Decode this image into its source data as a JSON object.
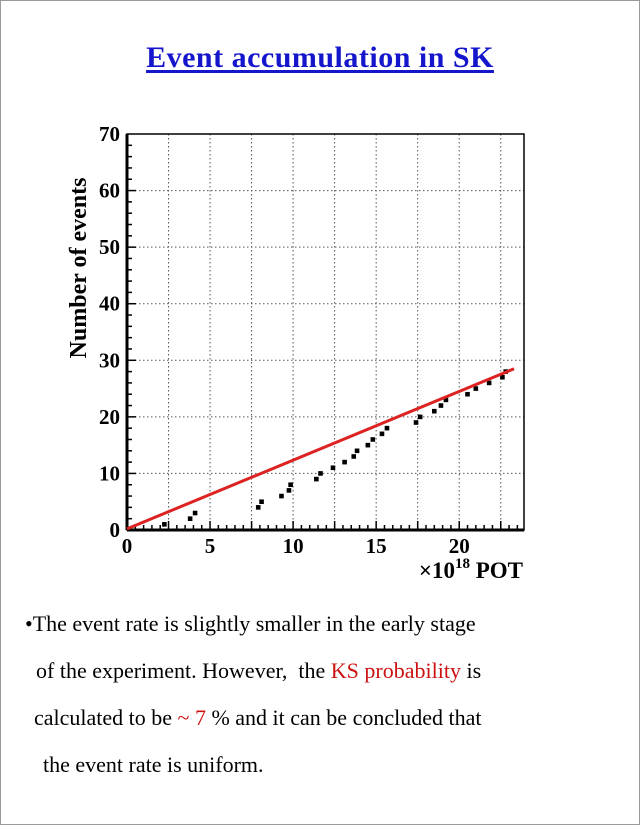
{
  "page": {
    "background": "#ffffff",
    "border_color": "#9a9a9a"
  },
  "title": {
    "text": "Event accumulation in SK",
    "color": "#1515cc"
  },
  "chart_data": {
    "type": "scatter",
    "title": "Event accumulation in SK",
    "xlabel": "×10^18 POT",
    "xlabel_parts": {
      "base": "×10",
      "exponent": "18",
      "unit": " POT"
    },
    "ylabel": "Number of events",
    "xlim": [
      0,
      23.9
    ],
    "ylim": [
      0,
      70
    ],
    "x_tick_labels": [
      0,
      5,
      10,
      15,
      20
    ],
    "x_grid_step": 2.5,
    "x_minor_tick_step": 0.5,
    "y_tick_labels": [
      0,
      10,
      20,
      30,
      40,
      50,
      60,
      70
    ],
    "y_grid_step": 10,
    "y_minor_tick_step": 2,
    "grid": "dotted",
    "legend": "none",
    "axis_color": "#000000",
    "grid_color": "#555555",
    "series": [
      {
        "name": "observed-cumulative-events",
        "type": "scatter",
        "marker": "filled-square",
        "color": "#000000",
        "points": [
          [
            2.25,
            1
          ],
          [
            3.8,
            2
          ],
          [
            4.1,
            3
          ],
          [
            7.9,
            4
          ],
          [
            8.1,
            5
          ],
          [
            9.3,
            6
          ],
          [
            9.75,
            7
          ],
          [
            9.85,
            8
          ],
          [
            11.4,
            9
          ],
          [
            11.65,
            10
          ],
          [
            12.4,
            11
          ],
          [
            13.1,
            12
          ],
          [
            13.65,
            13
          ],
          [
            13.85,
            14
          ],
          [
            14.5,
            15
          ],
          [
            14.8,
            16
          ],
          [
            15.35,
            17
          ],
          [
            15.65,
            18
          ],
          [
            17.4,
            19
          ],
          [
            17.65,
            20
          ],
          [
            18.5,
            21
          ],
          [
            18.9,
            22
          ],
          [
            19.2,
            23
          ],
          [
            20.5,
            24
          ],
          [
            21.0,
            25
          ],
          [
            21.8,
            26
          ],
          [
            22.6,
            27
          ],
          [
            22.8,
            28
          ]
        ]
      },
      {
        "name": "uniform-rate-expectation-line",
        "type": "line",
        "color": "#dd2222",
        "points": [
          [
            0,
            0.2
          ],
          [
            23.3,
            28.5
          ]
        ]
      }
    ]
  },
  "body_text": {
    "highlight_color": "#cc1111",
    "lines": [
      {
        "segments": [
          {
            "text": "•The event rate is slightly smaller in the early stage"
          }
        ]
      },
      {
        "segments": [
          {
            "text": "of the experiment. However,  the "
          },
          {
            "text": "KS probability",
            "color": "#cc1111"
          },
          {
            "text": " is"
          }
        ]
      },
      {
        "segments": [
          {
            "text": "calculated to be "
          },
          {
            "text": "~ 7",
            "color": "#cc1111"
          },
          {
            "text": " % and it can be concluded that"
          }
        ]
      },
      {
        "segments": [
          {
            "text": "the event rate is uniform."
          }
        ]
      }
    ]
  }
}
